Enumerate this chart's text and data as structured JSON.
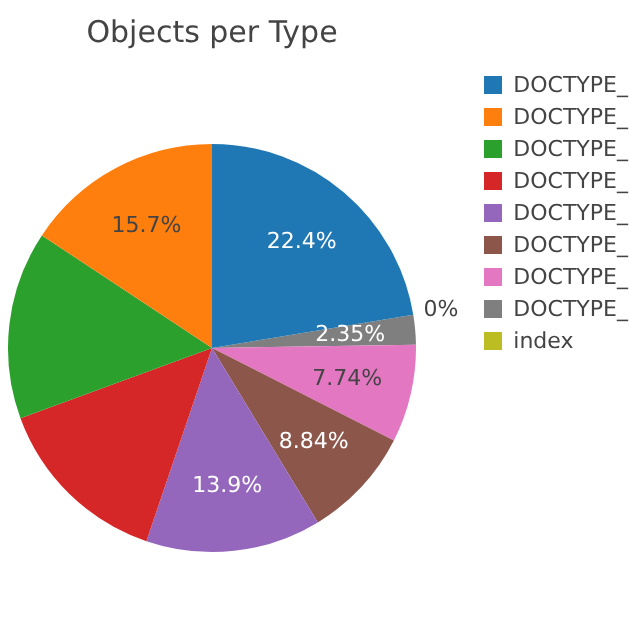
{
  "chart_data": {
    "type": "pie",
    "title": "Objects per Type",
    "categories": [
      "DOCTYPE_",
      "DOCTYPE_",
      "DOCTYPE_",
      "DOCTYPE_",
      "DOCTYPE_",
      "DOCTYPE_",
      "DOCTYPE_",
      "DOCTYPE_",
      "index"
    ],
    "values": [
      22.4,
      15.7,
      14.9,
      14.2,
      13.9,
      8.84,
      7.74,
      2.35,
      0
    ],
    "colors": [
      "#1f77b4",
      "#ff7f0e",
      "#2ca02c",
      "#d62728",
      "#9467bd",
      "#8c564b",
      "#e377c2",
      "#7f7f7f",
      "#bcbd22"
    ],
    "value_labels": [
      "22.4%",
      "15.7%",
      null,
      null,
      "13.9%",
      "8.84%",
      "7.74%",
      "2.35%",
      "0%"
    ],
    "legend": "top right"
  }
}
